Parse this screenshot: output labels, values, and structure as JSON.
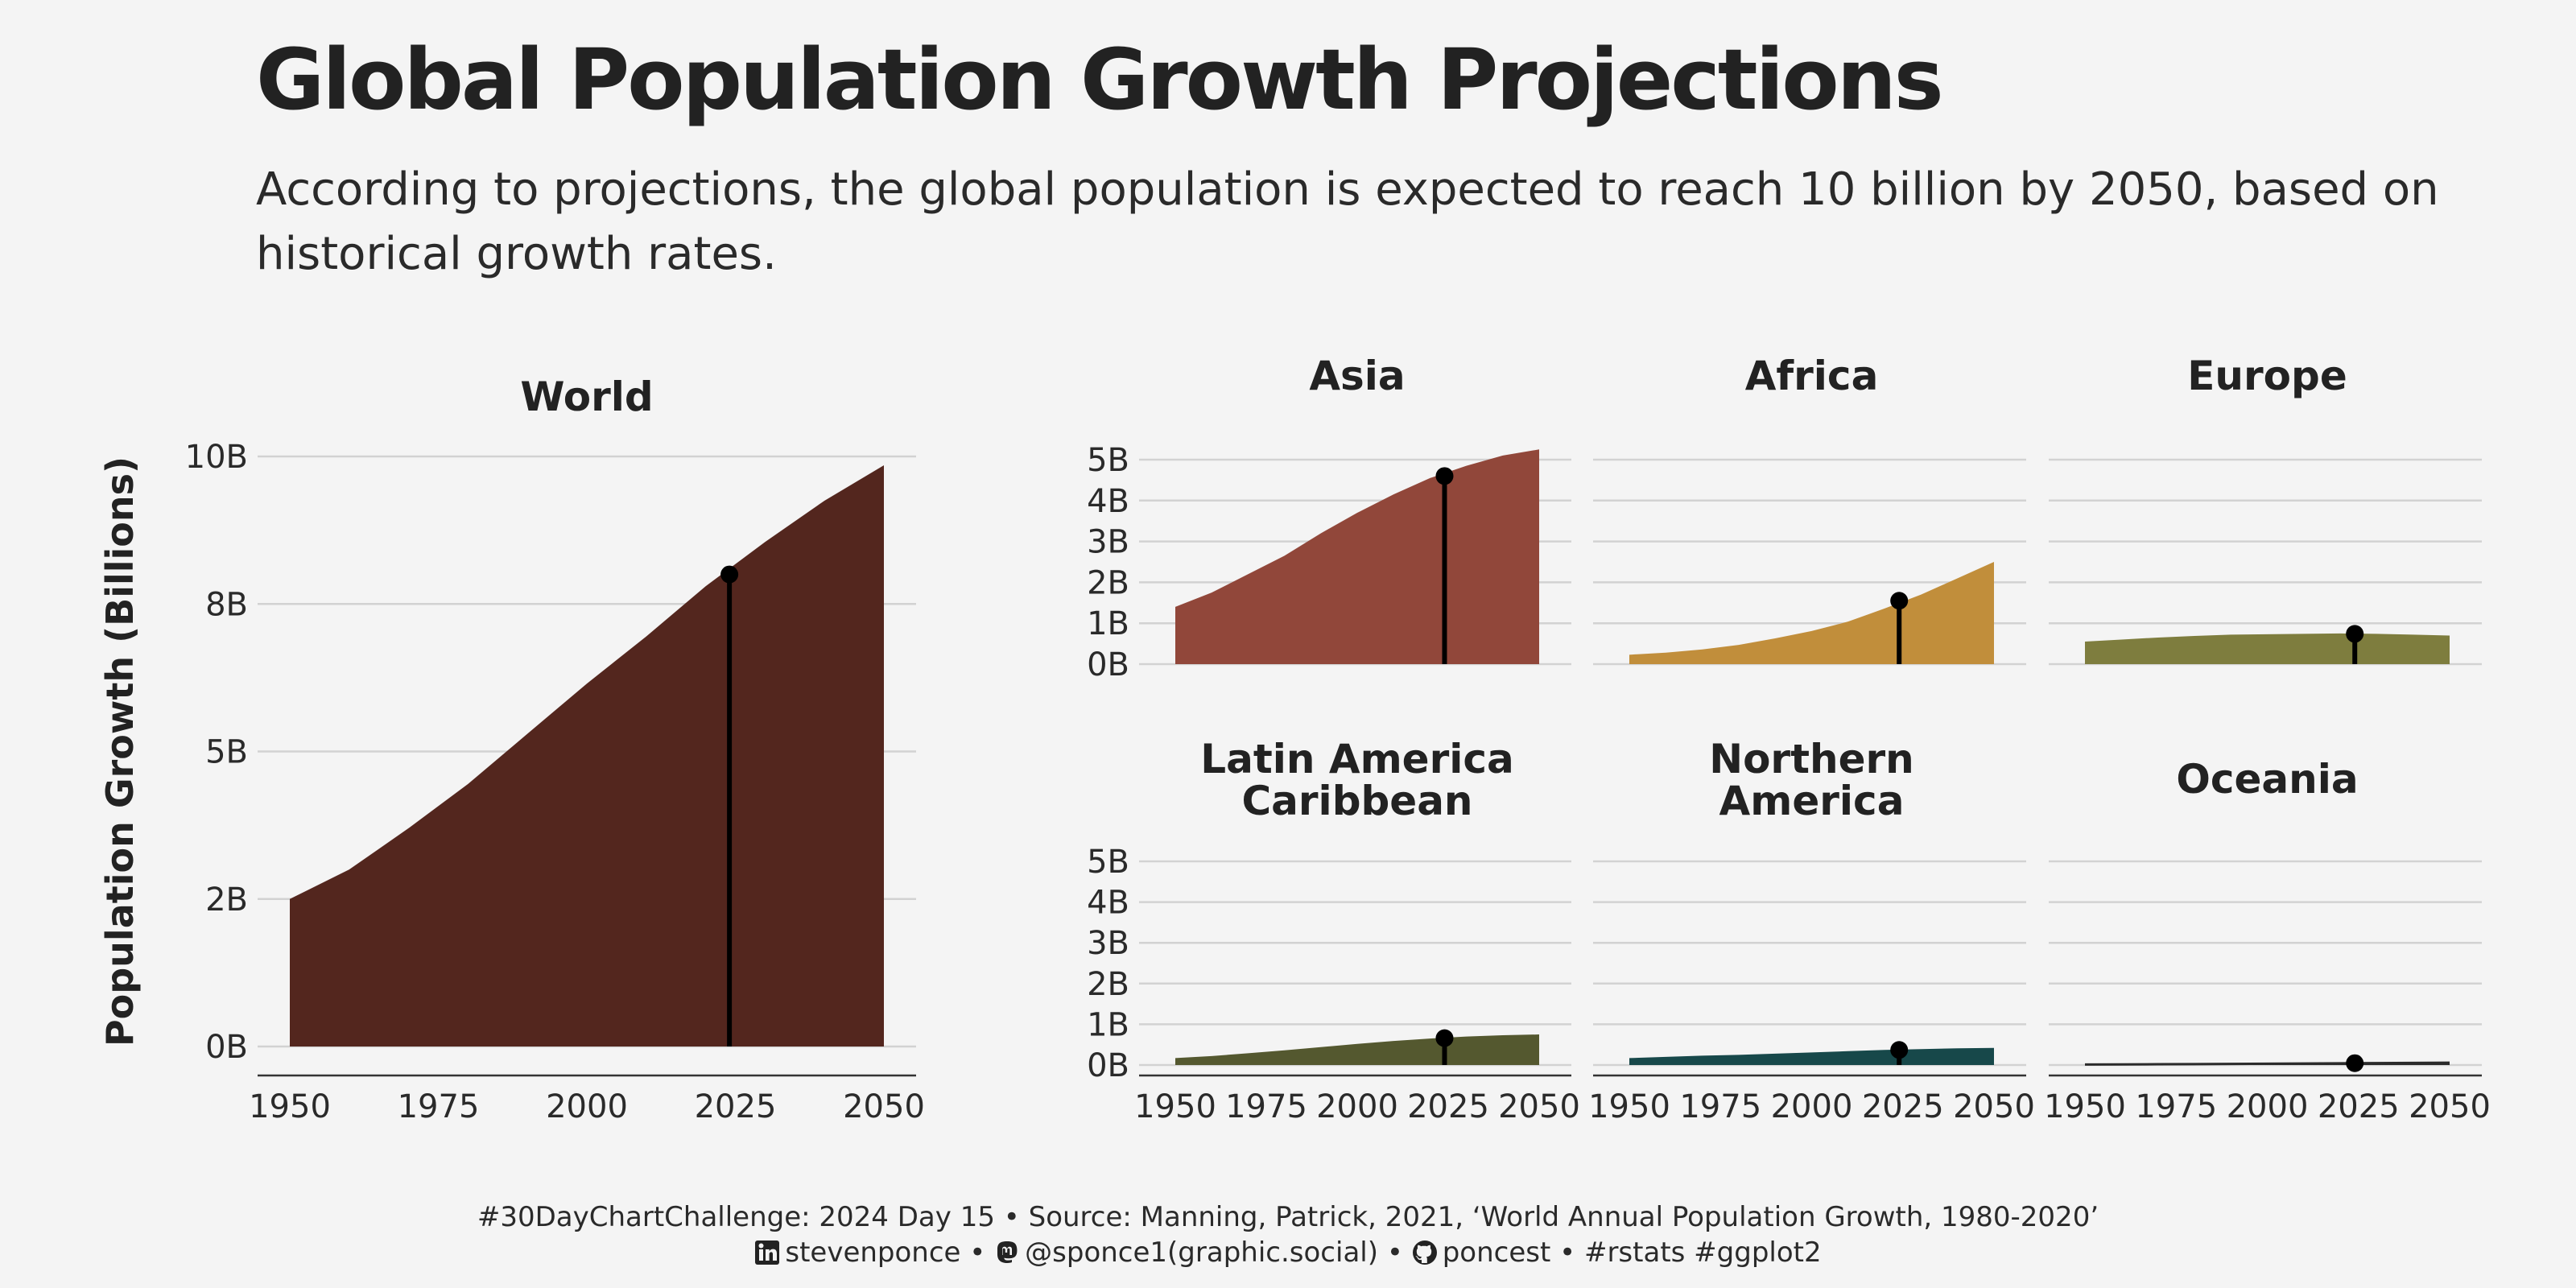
{
  "header": {
    "title": "Global Population Growth Projections",
    "subtitle": "According to projections, the global population is expected to reach 10 billion by 2050, based on historical growth rates."
  },
  "chart_data": [
    {
      "type": "area",
      "title": "World",
      "ylabel": "Population Growth (Billions)",
      "xlabel": "",
      "color": "#53261e",
      "x": [
        1950,
        1960,
        1965,
        1970,
        1980,
        1990,
        2000,
        2010,
        2020,
        2030,
        2040,
        2050
      ],
      "y": [
        2.5,
        3.0,
        3.35,
        3.7,
        4.45,
        5.3,
        6.15,
        6.95,
        7.8,
        8.55,
        9.25,
        9.85
      ],
      "ylim": [
        0,
        10
      ],
      "xlim": [
        1950,
        2050
      ],
      "yticks": [
        0,
        2.5,
        5,
        7.5,
        10
      ],
      "ytick_labels": [
        "0B",
        "2B",
        "5B",
        "8B",
        "10B"
      ],
      "xticks": [
        1950,
        1975,
        2000,
        2025,
        2050
      ],
      "xtick_labels": [
        "1950",
        "1975",
        "2000",
        "2025",
        "2050"
      ],
      "marker": {
        "x": 2024,
        "y": 8.0
      },
      "grid": true
    },
    {
      "type": "area",
      "title": "Asia",
      "color": "#91473a",
      "x": [
        1950,
        1960,
        1970,
        1980,
        1990,
        2000,
        2010,
        2020,
        2030,
        2040,
        2050
      ],
      "y": [
        1.4,
        1.75,
        2.2,
        2.65,
        3.2,
        3.7,
        4.15,
        4.55,
        4.85,
        5.1,
        5.25
      ],
      "ylim": [
        0,
        5
      ],
      "xlim": [
        1950,
        2050
      ],
      "yticks": [
        0,
        1,
        2,
        3,
        4,
        5
      ],
      "ytick_labels": [
        "0B",
        "1B",
        "2B",
        "3B",
        "4B",
        "5B"
      ],
      "xticks": [
        1950,
        1975,
        2000,
        2025,
        2050
      ],
      "marker": {
        "x": 2024,
        "y": 4.6
      },
      "grid": true
    },
    {
      "type": "area",
      "title": "Africa",
      "color": "#c18e3b",
      "x": [
        1950,
        1960,
        1970,
        1980,
        1990,
        2000,
        2010,
        2020,
        2030,
        2040,
        2050
      ],
      "y": [
        0.23,
        0.28,
        0.36,
        0.47,
        0.63,
        0.81,
        1.04,
        1.36,
        1.7,
        2.1,
        2.5
      ],
      "ylim": [
        0,
        5
      ],
      "xlim": [
        1950,
        2050
      ],
      "yticks": [
        0,
        1,
        2,
        3,
        4,
        5
      ],
      "xticks": [
        1950,
        1975,
        2000,
        2025,
        2050
      ],
      "marker": {
        "x": 2024,
        "y": 1.55
      },
      "grid": true
    },
    {
      "type": "area",
      "title": "Europe",
      "color": "#7e7d3e",
      "x": [
        1950,
        1960,
        1970,
        1980,
        1990,
        2000,
        2010,
        2020,
        2030,
        2040,
        2050
      ],
      "y": [
        0.55,
        0.6,
        0.65,
        0.69,
        0.72,
        0.73,
        0.74,
        0.75,
        0.74,
        0.72,
        0.7
      ],
      "ylim": [
        0,
        5
      ],
      "xlim": [
        1950,
        2050
      ],
      "yticks": [
        0,
        1,
        2,
        3,
        4,
        5
      ],
      "xticks": [
        1950,
        1975,
        2000,
        2025,
        2050
      ],
      "marker": {
        "x": 2024,
        "y": 0.74
      },
      "grid": true
    },
    {
      "type": "area",
      "title": "Latin America\nCaribbean",
      "color": "#54582f",
      "x": [
        1950,
        1960,
        1970,
        1980,
        1990,
        2000,
        2010,
        2020,
        2030,
        2040,
        2050
      ],
      "y": [
        0.17,
        0.22,
        0.29,
        0.36,
        0.44,
        0.52,
        0.59,
        0.65,
        0.7,
        0.73,
        0.75
      ],
      "ylim": [
        0,
        5
      ],
      "xlim": [
        1950,
        2050
      ],
      "yticks": [
        0,
        1,
        2,
        3,
        4,
        5
      ],
      "ytick_labels": [
        "0B",
        "1B",
        "2B",
        "3B",
        "4B",
        "5B"
      ],
      "xticks": [
        1950,
        1975,
        2000,
        2025,
        2050
      ],
      "xtick_labels": [
        "1950",
        "1975",
        "2000",
        "2025",
        "2050"
      ],
      "marker": {
        "x": 2024,
        "y": 0.66
      },
      "grid": true
    },
    {
      "type": "area",
      "title": "Northern\nAmerica",
      "color": "#17484a",
      "x": [
        1950,
        1960,
        1970,
        1980,
        1990,
        2000,
        2010,
        2020,
        2030,
        2040,
        2050
      ],
      "y": [
        0.17,
        0.2,
        0.23,
        0.25,
        0.28,
        0.31,
        0.34,
        0.37,
        0.39,
        0.41,
        0.42
      ],
      "ylim": [
        0,
        5
      ],
      "xlim": [
        1950,
        2050
      ],
      "yticks": [
        0,
        1,
        2,
        3,
        4,
        5
      ],
      "xticks": [
        1950,
        1975,
        2000,
        2025,
        2050
      ],
      "xtick_labels": [
        "1950",
        "1975",
        "2000",
        "2025",
        "2050"
      ],
      "marker": {
        "x": 2024,
        "y": 0.37
      },
      "grid": true
    },
    {
      "type": "area",
      "title": "Oceania",
      "color": "#2b2b2b",
      "x": [
        1950,
        1960,
        1970,
        1980,
        1990,
        2000,
        2010,
        2020,
        2030,
        2040,
        2050
      ],
      "y": [
        0.013,
        0.016,
        0.019,
        0.023,
        0.027,
        0.031,
        0.037,
        0.043,
        0.048,
        0.053,
        0.058
      ],
      "ylim": [
        0,
        5
      ],
      "xlim": [
        1950,
        2050
      ],
      "yticks": [
        0,
        1,
        2,
        3,
        4,
        5
      ],
      "xticks": [
        1950,
        1975,
        2000,
        2025,
        2050
      ],
      "xtick_labels": [
        "1950",
        "1975",
        "2000",
        "2025",
        "2050"
      ],
      "marker": {
        "x": 2024,
        "y": 0.045
      },
      "grid": true
    }
  ],
  "caption": {
    "line1": "#30DayChartChallenge: 2024 Day 15 • Source: Manning, Patrick, 2021, ‘World Annual Population Growth, 1980-2020’",
    "linkedin_handle": "stevenponce",
    "separator": "•",
    "mastodon_handle": "@sponce1(graphic.social)",
    "github_handle": "poncest",
    "tags": "#rstats #ggplot2",
    "icons": [
      "linkedin-icon",
      "mastodon-icon",
      "github-icon"
    ]
  }
}
